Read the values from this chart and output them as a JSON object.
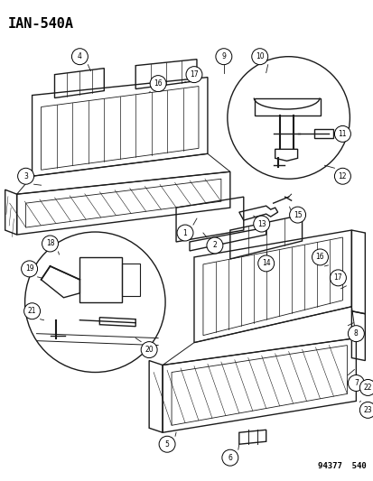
{
  "title": "IAN-540A",
  "footer": "94377  540",
  "background_color": "#ffffff",
  "line_color": "#1a1a1a",
  "fig_width": 4.14,
  "fig_height": 5.33,
  "dpi": 100
}
